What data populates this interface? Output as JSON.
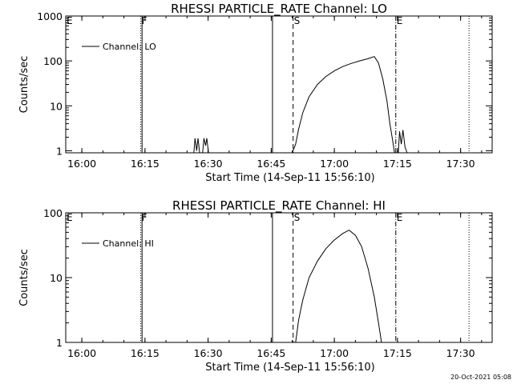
{
  "chart_data": [
    {
      "type": "line",
      "title": "RHESSI PARTICLE_RATE Channel: LO",
      "xlabel": "Start Time (14-Sep-11 15:56:10)",
      "ylabel": "Counts/sec",
      "yscale": "log",
      "ylim": [
        0.9,
        1000
      ],
      "y_ticks": [
        1,
        10,
        100,
        1000
      ],
      "x_ticks": [
        "16:00",
        "16:15",
        "16:30",
        "16:45",
        "17:00",
        "17:15",
        "17:30"
      ],
      "legend": {
        "position": "top-left",
        "entries": [
          "Channel: LO"
        ]
      },
      "markers": [
        {
          "time": "15:56",
          "label": "E",
          "style": "none"
        },
        {
          "time": "16:14",
          "label": "F",
          "style": "dotted"
        },
        {
          "time": "16:14.3",
          "label": "",
          "style": "solid"
        },
        {
          "time": "16:45.3",
          "label": "",
          "style": "solid"
        },
        {
          "time": "16:50.2",
          "label": "S",
          "style": "dashed"
        },
        {
          "time": "17:14.6",
          "label": "E",
          "style": "dash-dot"
        },
        {
          "time": "17:32",
          "label": "",
          "style": "dotted"
        }
      ],
      "series": [
        {
          "name": "Channel: LO",
          "points": [
            [
              "16:26.6",
              0.9
            ],
            [
              "16:26.9",
              1.9
            ],
            [
              "16:27.3",
              1.0
            ],
            [
              "16:27.6",
              1.9
            ],
            [
              "16:28.0",
              0.9
            ],
            [
              "16:28.7",
              0.9
            ],
            [
              "16:29.0",
              1.9
            ],
            [
              "16:29.4",
              1.3
            ],
            [
              "16:29.7",
              1.9
            ],
            [
              "16:30.1",
              0.9
            ],
            [
              "16:50.0",
              0.9
            ],
            [
              "16:50.8",
              1.4
            ],
            [
              "16:51.5",
              3
            ],
            [
              "16:52.5",
              7
            ],
            [
              "16:54",
              16
            ],
            [
              "16:56",
              30
            ],
            [
              "16:58",
              45
            ],
            [
              "17:00",
              60
            ],
            [
              "17:02",
              75
            ],
            [
              "17:04",
              88
            ],
            [
              "17:06",
              100
            ],
            [
              "17:08",
              112
            ],
            [
              "17:09.5",
              125
            ],
            [
              "17:10.5",
              90
            ],
            [
              "17:11.5",
              40
            ],
            [
              "17:12.5",
              13
            ],
            [
              "17:13.2",
              4
            ],
            [
              "17:13.8",
              1.8
            ],
            [
              "17:14.3",
              0.9
            ],
            [
              "17:15.2",
              0.9
            ],
            [
              "17:15.5",
              2.7
            ],
            [
              "17:15.9",
              1.4
            ],
            [
              "17:16.3",
              2.9
            ],
            [
              "17:16.8",
              1.2
            ],
            [
              "17:17.3",
              0.9
            ]
          ]
        }
      ]
    },
    {
      "type": "line",
      "title": "RHESSI PARTICLE_RATE Channel: HI",
      "xlabel": "Start Time (14-Sep-11 15:56:10)",
      "ylabel": "Counts/sec",
      "yscale": "log",
      "ylim": [
        1,
        100
      ],
      "y_ticks": [
        1,
        10,
        100
      ],
      "x_ticks": [
        "16:00",
        "16:15",
        "16:30",
        "16:45",
        "17:00",
        "17:15",
        "17:30"
      ],
      "legend": {
        "position": "top-left",
        "entries": [
          "Channel: HI"
        ]
      },
      "markers": [
        {
          "time": "15:56",
          "label": "E",
          "style": "none"
        },
        {
          "time": "16:14",
          "label": "F",
          "style": "dotted"
        },
        {
          "time": "16:14.3",
          "label": "",
          "style": "solid"
        },
        {
          "time": "16:45.3",
          "label": "",
          "style": "solid"
        },
        {
          "time": "16:50.2",
          "label": "S",
          "style": "dashed"
        },
        {
          "time": "17:14.6",
          "label": "E",
          "style": "dash-dot"
        },
        {
          "time": "17:32",
          "label": "",
          "style": "dotted"
        }
      ],
      "series": [
        {
          "name": "Channel: HI",
          "points": [
            [
              "16:50.8",
              1.0
            ],
            [
              "16:51.5",
              2.2
            ],
            [
              "16:52.5",
              4.5
            ],
            [
              "16:54",
              10
            ],
            [
              "16:56",
              18
            ],
            [
              "16:58",
              28
            ],
            [
              "17:00",
              38
            ],
            [
              "17:02",
              48
            ],
            [
              "17:03.5",
              54
            ],
            [
              "17:05",
              45
            ],
            [
              "17:06.5",
              30
            ],
            [
              "17:08",
              14
            ],
            [
              "17:09.5",
              5
            ],
            [
              "17:10.5",
              2
            ],
            [
              "17:11.2",
              1.0
            ]
          ]
        }
      ]
    }
  ],
  "footer": {
    "timestamp": "20-Oct-2021 05:08"
  }
}
